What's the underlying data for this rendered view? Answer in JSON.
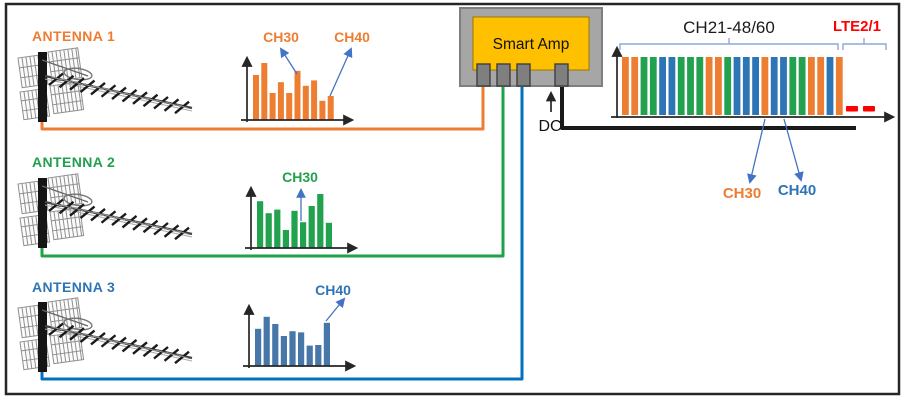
{
  "figure": {
    "antennas": [
      {
        "label": "ANTENNA 1",
        "color": "#ED7D31"
      },
      {
        "label": "ANTENNA 2",
        "color": "#21A04D"
      },
      {
        "label": "ANTENNA 3",
        "color": "#2E75B6"
      }
    ],
    "amp": {
      "label": "Smart Amp",
      "dc_label": "DC"
    },
    "colors": {
      "orange": "#ED7D31",
      "green": "#22A14E",
      "blue": "#2E75B6",
      "steel_blue": "#4776A9",
      "red": "#FF0000",
      "brace": "#8EA9DB",
      "arrow": "#4472C4",
      "amp_body": "#A6A6A6",
      "amp_panel": "#FFC000",
      "cable_orange": "#ED7D31",
      "cable_green": "#1EA24A",
      "cable_blue": "#0070C0",
      "cable_black": "#1A1A1A"
    }
  },
  "chart_data": [
    {
      "type": "bar",
      "name": "antenna1-input-spectrum",
      "bar_color": "#ED7D31",
      "values": [
        75,
        95,
        45,
        63,
        45,
        82,
        57,
        66,
        32,
        40
      ],
      "annotations": [
        {
          "label": "CH30",
          "bar_index": 5,
          "color": "#ED7D31"
        },
        {
          "label": "CH40",
          "bar_index": 9,
          "color": "#ED7D31"
        }
      ]
    },
    {
      "type": "bar",
      "name": "antenna2-input-spectrum",
      "bar_color": "#22A14E",
      "values": [
        78,
        58,
        64,
        30,
        62,
        43,
        70,
        90,
        42
      ],
      "annotations": [
        {
          "label": "CH30",
          "bar_index": 5,
          "color": "#21A04D"
        }
      ]
    },
    {
      "type": "bar",
      "name": "antenna3-input-spectrum",
      "bar_color": "#4776A9",
      "values": [
        62,
        82,
        70,
        50,
        58,
        56,
        34,
        35,
        72
      ],
      "annotations": [
        {
          "label": "CH40",
          "bar_index": 8,
          "color": "#2E75B6"
        }
      ]
    },
    {
      "type": "bar",
      "name": "amplifier-output-spectrum",
      "values": [
        100,
        100,
        100,
        100,
        100,
        100,
        100,
        100,
        100,
        100,
        100,
        100,
        100,
        100,
        100,
        100,
        100,
        100,
        100,
        100,
        100,
        100,
        100,
        100
      ],
      "bar_colors": [
        "#ED7D31",
        "#ED7D31",
        "#22A14E",
        "#22A14E",
        "#2E75B6",
        "#2E75B6",
        "#22A14E",
        "#22A14E",
        "#22A14E",
        "#ED7D31",
        "#ED7D31",
        "#22A14E",
        "#2E75B6",
        "#2E75B6",
        "#2E75B6",
        "#ED7D31",
        "#2E75B6",
        "#2E75B6",
        "#22A14E",
        "#22A14E",
        "#ED7D31",
        "#ED7D31",
        "#2E75B6",
        "#ED7D31"
      ],
      "group_labels": [
        {
          "label": "CH21-48/60",
          "color": "#1A1A1A"
        },
        {
          "label": "LTE2/1",
          "color": "#FF0000"
        }
      ],
      "annotations": [
        {
          "label": "CH30",
          "bar_index": 15,
          "color": "#ED7D31"
        },
        {
          "label": "CH40",
          "bar_index": 17,
          "color": "#2E75B6"
        }
      ],
      "lte_markers": 2
    }
  ]
}
